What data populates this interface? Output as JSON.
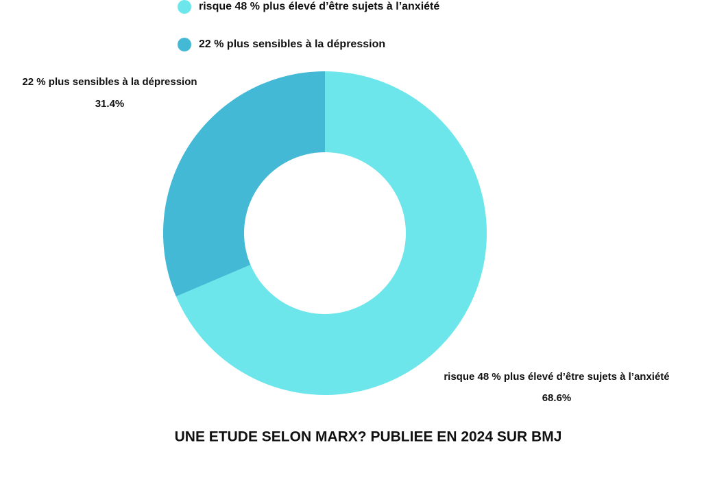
{
  "chart_data": {
    "type": "donut",
    "title": "UNE ETUDE SELON MARX? PUBLIEE EN 2024 SUR BMJ",
    "categories": [
      "risque 48 % plus élevé d’être sujets à l’anxiété",
      "22 % plus sensibles à la dépression"
    ],
    "values": [
      68.6,
      31.4
    ],
    "value_labels": [
      "68.6%",
      "31.4%"
    ],
    "colors": [
      "#6ce6ea",
      "#43b9d6"
    ],
    "legend": "top"
  }
}
